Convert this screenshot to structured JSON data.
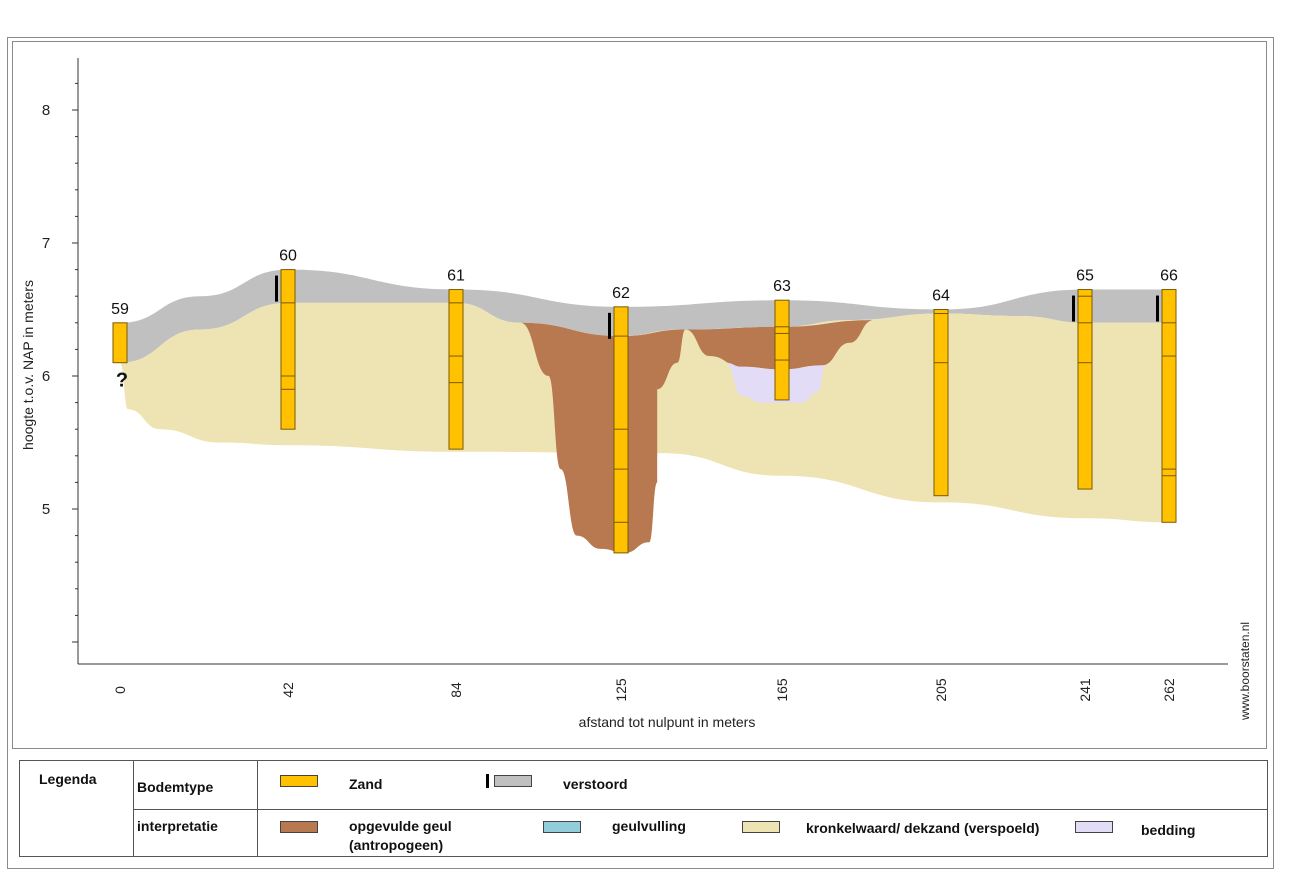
{
  "chart_data": {
    "type": "geological-cross-section",
    "xlabel": "afstand tot nulpunt in meters",
    "ylabel": "hoogte t.o.v. NAP in meters",
    "x_ticks": [
      0,
      42,
      84,
      125,
      165,
      205,
      241,
      262
    ],
    "y_ticks": [
      5,
      6,
      7,
      8
    ],
    "xlim": [
      -5,
      270
    ],
    "ylim": [
      3.8,
      8.4
    ],
    "boreholes": [
      {
        "id": "59",
        "x": 0,
        "top": 6.4,
        "bottom": 6.1,
        "breaks": [],
        "disturbed": false,
        "note": "?"
      },
      {
        "id": "60",
        "x": 42,
        "top": 6.8,
        "bottom": 5.6,
        "breaks": [
          6.55,
          6.0,
          5.9
        ],
        "disturbed": true,
        "note": ""
      },
      {
        "id": "61",
        "x": 84,
        "top": 6.65,
        "bottom": 5.45,
        "breaks": [
          6.55,
          6.15,
          5.95
        ],
        "disturbed": false,
        "note": ""
      },
      {
        "id": "62",
        "x": 125,
        "top": 6.52,
        "bottom": 4.67,
        "breaks": [
          6.3,
          5.6,
          5.3,
          4.9
        ],
        "disturbed": true,
        "note": ""
      },
      {
        "id": "63",
        "x": 165,
        "top": 6.57,
        "bottom": 5.82,
        "breaks": [
          6.37,
          6.32,
          6.12
        ],
        "disturbed": false,
        "note": ""
      },
      {
        "id": "64",
        "x": 205,
        "top": 6.5,
        "bottom": 5.1,
        "breaks": [
          6.47,
          6.1
        ],
        "disturbed": false,
        "note": ""
      },
      {
        "id": "65",
        "x": 241,
        "top": 6.65,
        "bottom": 5.15,
        "breaks": [
          6.6,
          6.4,
          6.1
        ],
        "disturbed": true,
        "note": ""
      },
      {
        "id": "66",
        "x": 262,
        "top": 6.65,
        "bottom": 4.9,
        "breaks": [
          6.4,
          6.15,
          5.3,
          5.25
        ],
        "disturbed": true,
        "note": ""
      }
    ],
    "layers": [
      {
        "key": "verstoord",
        "color": "#c0c0c0",
        "top": [
          [
            0,
            6.4
          ],
          [
            20,
            6.6
          ],
          [
            42,
            6.8
          ],
          [
            84,
            6.65
          ],
          [
            125,
            6.52
          ],
          [
            165,
            6.57
          ],
          [
            205,
            6.5
          ],
          [
            241,
            6.65
          ],
          [
            262,
            6.65
          ]
        ],
        "bottom": [
          [
            0,
            6.1
          ],
          [
            20,
            6.35
          ],
          [
            42,
            6.55
          ],
          [
            84,
            6.55
          ],
          [
            100,
            6.4
          ],
          [
            125,
            6.3
          ],
          [
            140,
            6.35
          ],
          [
            165,
            6.37
          ],
          [
            182,
            6.42
          ],
          [
            205,
            6.47
          ],
          [
            225,
            6.45
          ],
          [
            241,
            6.4
          ],
          [
            262,
            6.4
          ]
        ]
      },
      {
        "key": "dekzand",
        "color": "#ede3b3",
        "top": [
          [
            0,
            6.1
          ],
          [
            20,
            6.35
          ],
          [
            42,
            6.55
          ],
          [
            84,
            6.55
          ],
          [
            100,
            6.4
          ],
          [
            125,
            6.3
          ],
          [
            140,
            6.35
          ],
          [
            165,
            6.37
          ],
          [
            182,
            6.42
          ],
          [
            205,
            6.47
          ],
          [
            225,
            6.45
          ],
          [
            241,
            6.4
          ],
          [
            262,
            6.4
          ]
        ],
        "bottom": [
          [
            0,
            6.1
          ],
          [
            2,
            5.75
          ],
          [
            10,
            5.6
          ],
          [
            25,
            5.5
          ],
          [
            42,
            5.48
          ],
          [
            84,
            5.43
          ],
          [
            135,
            5.42
          ],
          [
            165,
            5.25
          ],
          [
            205,
            5.05
          ],
          [
            241,
            4.93
          ],
          [
            262,
            4.9
          ]
        ]
      },
      {
        "key": "opgevulde_geul",
        "color": "#b87850",
        "shape": [
          [
            100,
            6.4
          ],
          [
            107,
            6.0
          ],
          [
            110,
            5.3
          ],
          [
            114,
            4.8
          ],
          [
            120,
            4.7
          ],
          [
            126,
            4.67
          ],
          [
            132,
            4.75
          ],
          [
            134,
            5.2
          ],
          [
            134,
            5.9
          ],
          [
            139,
            6.1
          ],
          [
            141,
            6.35
          ],
          [
            125,
            6.3
          ]
        ]
      },
      {
        "key": "opgevulde_geul_2",
        "color": "#b87850",
        "shape": [
          [
            141,
            6.35
          ],
          [
            147,
            6.15
          ],
          [
            155,
            6.07
          ],
          [
            165,
            6.05
          ],
          [
            175,
            6.08
          ],
          [
            182,
            6.25
          ],
          [
            188,
            6.42
          ],
          [
            165,
            6.37
          ]
        ]
      },
      {
        "key": "bedding",
        "color": "#e3dcf7",
        "shape": [
          [
            151,
            6.1
          ],
          [
            155,
            5.85
          ],
          [
            160,
            5.8
          ],
          [
            170,
            5.8
          ],
          [
            174,
            5.88
          ],
          [
            176,
            6.08
          ],
          [
            165,
            6.05
          ],
          [
            155,
            6.07
          ]
        ]
      }
    ]
  },
  "axis": {
    "ylabel": "hoogte t.o.v. NAP in meters",
    "xlabel": "afstand tot nulpunt in meters",
    "y_tick_labels": [
      "8",
      "7",
      "6",
      "5"
    ],
    "x_tick_labels": [
      "0",
      "42",
      "84",
      "125",
      "165",
      "205",
      "241",
      "262"
    ]
  },
  "watermark": "www.boorstaten.nl",
  "legend": {
    "title": "Legenda",
    "row1_label": "Bodemtype",
    "row2_label": "interpretatie",
    "zand": "Zand",
    "verstoord": "verstoord",
    "opgevulde_geul_line1": "opgevulde geul",
    "opgevulde_geul_line2": "(antropogeen)",
    "geulvulling": "geulvulling",
    "kronkelwaard": "kronkelwaard/ dekzand (verspoeld)",
    "bedding": "bedding"
  },
  "colors": {
    "zand": "#ffc100",
    "verstoord": "#c0c0c0",
    "opgevulde_geul": "#b87850",
    "geulvulling": "#92cddc",
    "kronkelwaard": "#ede3b3",
    "bedding": "#e3dcf7"
  }
}
